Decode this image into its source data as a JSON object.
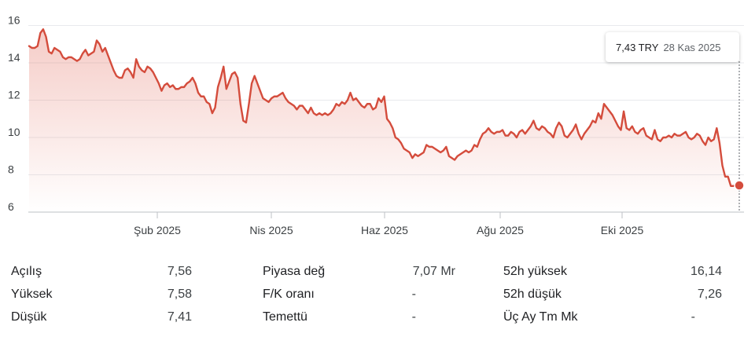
{
  "chart_data": {
    "type": "area",
    "y_ticks": [
      6,
      8,
      10,
      12,
      14,
      16
    ],
    "ylim": [
      6,
      16.2
    ],
    "x_ticks": [
      "Şub 2025",
      "Nis 2025",
      "Haz 2025",
      "Ağu 2025",
      "Eki 2025"
    ],
    "series": [
      {
        "values": [
          14.9,
          14.8,
          14.8,
          14.9,
          15.6,
          15.8,
          15.4,
          14.6,
          14.5,
          14.8,
          14.7,
          14.6,
          14.3,
          14.2,
          14.3,
          14.3,
          14.2,
          14.1,
          14.2,
          14.5,
          14.7,
          14.4,
          14.5,
          14.6,
          15.2,
          15.0,
          14.6,
          14.8,
          14.4,
          14.0,
          13.6,
          13.3,
          13.2,
          13.2,
          13.6,
          13.7,
          13.5,
          13.2,
          14.2,
          13.8,
          13.6,
          13.5,
          13.8,
          13.7,
          13.5,
          13.2,
          12.9,
          12.5,
          12.8,
          12.9,
          12.7,
          12.8,
          12.6,
          12.6,
          12.7,
          12.7,
          12.9,
          13.0,
          13.2,
          12.9,
          12.4,
          12.2,
          12.2,
          11.9,
          11.8,
          11.3,
          11.6,
          12.7,
          13.2,
          13.8,
          12.6,
          13.0,
          13.4,
          13.5,
          13.2,
          11.8,
          10.9,
          10.8,
          11.8,
          12.9,
          13.3,
          12.9,
          12.5,
          12.1,
          12.0,
          11.9,
          12.1,
          12.2,
          12.2,
          12.3,
          12.4,
          12.1,
          11.9,
          11.8,
          11.7,
          11.5,
          11.7,
          11.7,
          11.5,
          11.3,
          11.6,
          11.3,
          11.2,
          11.3,
          11.2,
          11.3,
          11.2,
          11.3,
          11.5,
          11.8,
          11.7,
          11.9,
          11.8,
          12.0,
          12.4,
          12.0,
          12.1,
          11.9,
          11.7,
          11.6,
          11.8,
          11.8,
          11.5,
          11.6,
          12.1,
          11.9,
          12.2,
          11.0,
          10.8,
          10.5,
          10.0,
          9.9,
          9.7,
          9.4,
          9.3,
          9.2,
          8.9,
          9.1,
          9.0,
          9.1,
          9.2,
          9.6,
          9.5,
          9.5,
          9.4,
          9.3,
          9.2,
          9.3,
          9.5,
          9.0,
          8.9,
          8.8,
          9.0,
          9.1,
          9.2,
          9.3,
          9.2,
          9.3,
          9.6,
          9.5,
          9.9,
          10.2,
          10.3,
          10.5,
          10.3,
          10.2,
          10.3,
          10.3,
          10.4,
          10.1,
          10.1,
          10.3,
          10.2,
          10.0,
          10.3,
          10.4,
          10.2,
          10.4,
          10.6,
          10.9,
          10.5,
          10.4,
          10.6,
          10.5,
          10.3,
          10.2,
          10.0,
          10.5,
          10.8,
          10.6,
          10.1,
          10.0,
          10.2,
          10.4,
          10.7,
          10.2,
          9.9,
          10.2,
          10.4,
          10.6,
          10.9,
          10.8,
          11.3,
          11.0,
          11.8,
          11.6,
          11.4,
          11.2,
          10.9,
          10.6,
          10.4,
          11.4,
          10.5,
          10.4,
          10.6,
          10.3,
          10.2,
          10.4,
          10.5,
          10.1,
          10.0,
          9.9,
          10.4,
          9.9,
          9.8,
          10.0,
          10.0,
          10.1,
          10.0,
          10.2,
          10.1,
          10.1,
          10.2,
          10.3,
          10.0,
          9.9,
          10.0,
          10.2,
          10.1,
          9.8,
          9.6,
          10.0,
          9.8,
          9.9,
          10.5,
          9.7,
          8.5,
          7.9,
          7.9,
          7.4,
          7.4,
          7.5,
          7.43
        ]
      }
    ],
    "line_color": "#d44c3c",
    "fill_color": "#e06050",
    "tooltip": {
      "price": "7,43 TRY",
      "date": "28 Kas 2025"
    }
  },
  "stats": {
    "columns": [
      [
        {
          "label": "Açılış",
          "value": "7,56"
        },
        {
          "label": "Yüksek",
          "value": "7,58"
        },
        {
          "label": "Düşük",
          "value": "7,41"
        }
      ],
      [
        {
          "label": "Piyasa değ",
          "value": "7,07 Mr"
        },
        {
          "label": "F/K oranı",
          "value": "-"
        },
        {
          "label": "Temettü",
          "value": "-"
        }
      ],
      [
        {
          "label": "52h yüksek",
          "value": "16,14"
        },
        {
          "label": "52h düşük",
          "value": "7,26"
        },
        {
          "label": "Üç Ay Tm Mk",
          "value": "-"
        }
      ]
    ]
  }
}
